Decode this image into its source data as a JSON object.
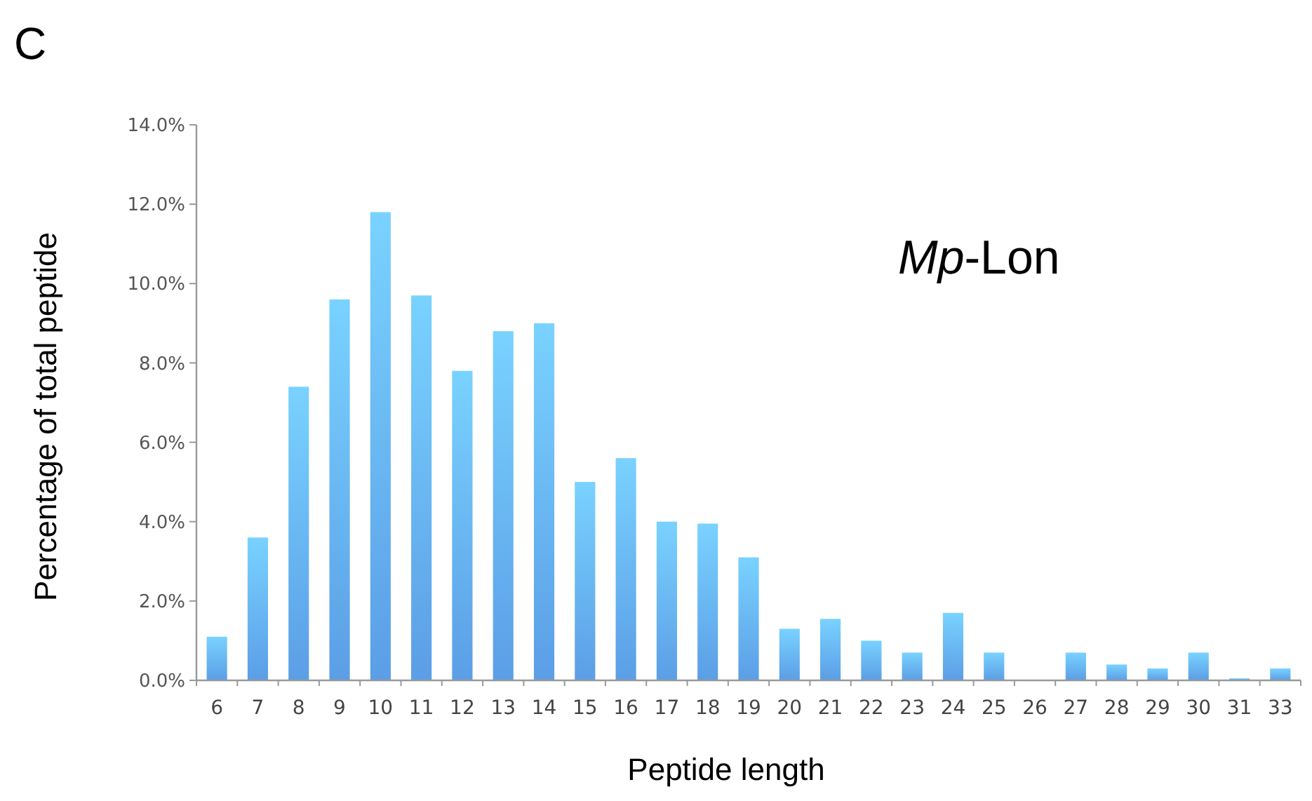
{
  "chart_data": {
    "type": "bar",
    "ylabel": "Percentage of total peptide",
    "xlabel": "Peptide length",
    "annotations": [
      "C",
      {
        "text": "Mp-Lon"
      }
    ],
    "categories": [
      "6",
      "7",
      "8",
      "9",
      "10",
      "11",
      "12",
      "13",
      "14",
      "15",
      "16",
      "17",
      "18",
      "19",
      "20",
      "21",
      "22",
      "23",
      "24",
      "25",
      "26",
      "27",
      "28",
      "29",
      "30",
      "31",
      "33"
    ],
    "values": [
      1.1,
      3.6,
      7.4,
      9.6,
      11.8,
      9.7,
      7.8,
      8.8,
      9.0,
      5.0,
      5.6,
      4.0,
      3.95,
      3.1,
      1.3,
      1.55,
      1.0,
      0.7,
      1.7,
      0.7,
      0,
      0.7,
      0.4,
      0.3,
      0.7,
      0.05,
      0.3
    ],
    "color": "#5b9ee6",
    "ylim": [
      0,
      14
    ],
    "yticks": [
      {
        "value": 0,
        "label": "0.0%"
      },
      {
        "value": 2,
        "label": "2.0%"
      },
      {
        "value": 4,
        "label": "4.0%"
      },
      {
        "value": 6,
        "label": "6.0%"
      },
      {
        "value": 8,
        "label": "8.0%"
      },
      {
        "value": 10,
        "label": "10.0%"
      },
      {
        "value": 12,
        "label": "12.0%"
      },
      {
        "value": 14,
        "label": "14.0%"
      }
    ],
    "grid": false
  }
}
